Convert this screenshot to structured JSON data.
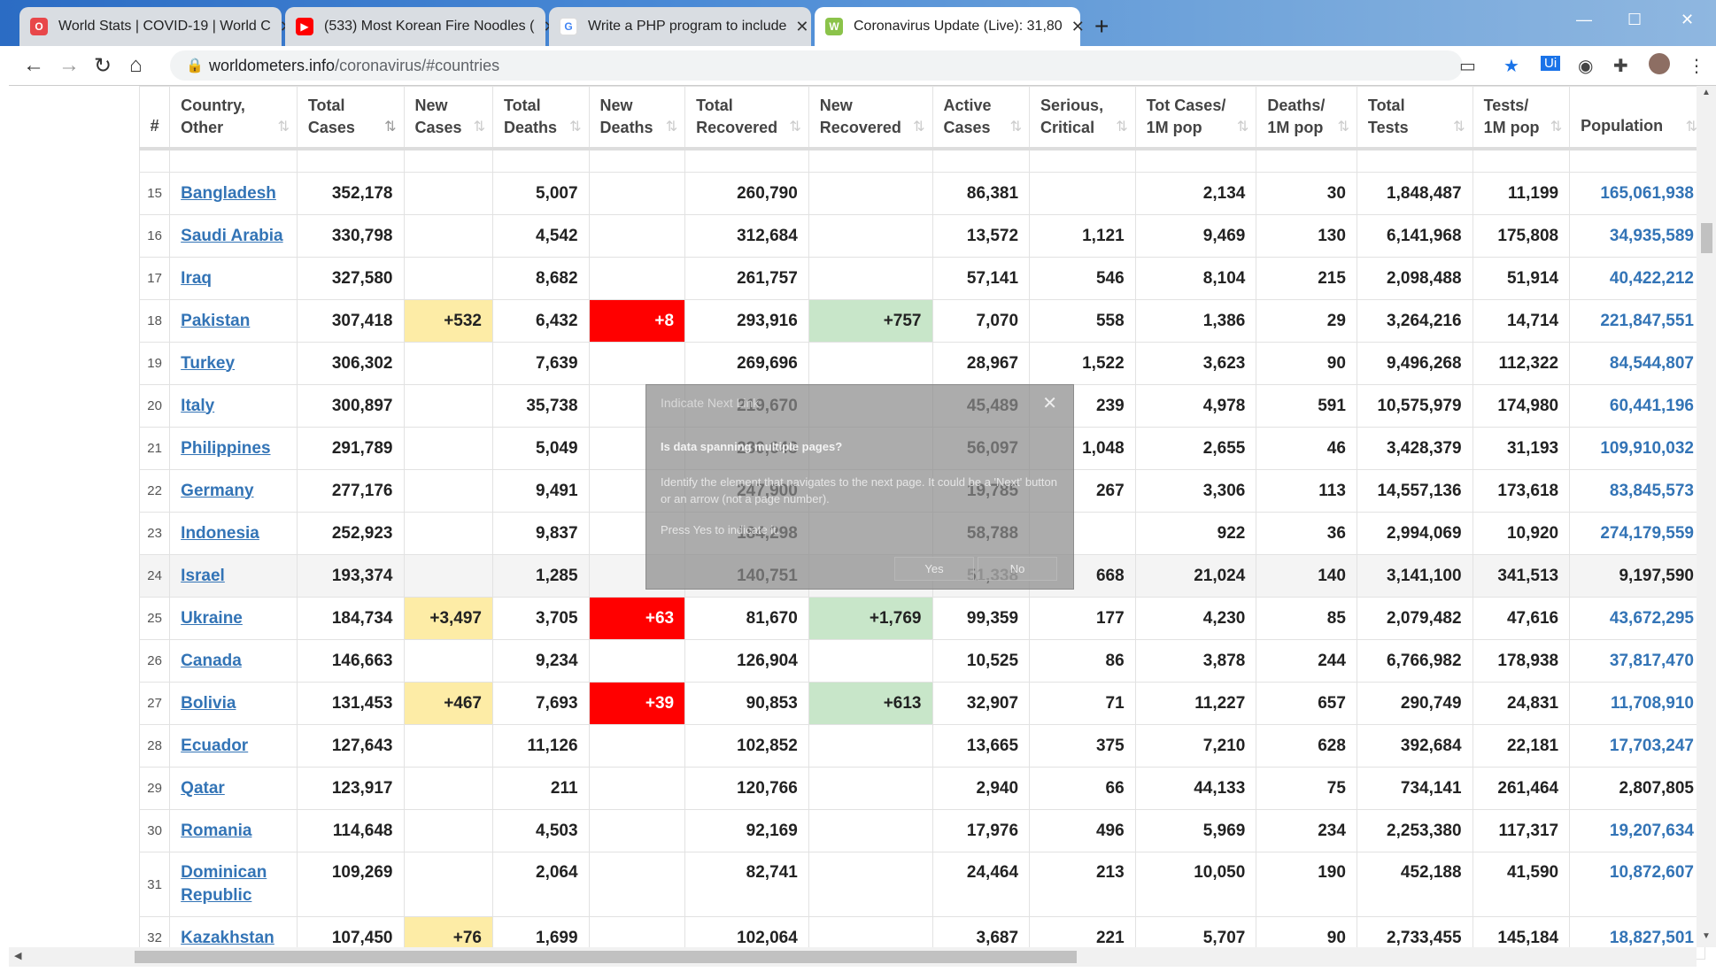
{
  "tabs": [
    {
      "title": "World Stats | COVID-19 | World C",
      "icon": "opera-icon",
      "color": "#e8474a"
    },
    {
      "title": "(533) Most Korean Fire Noodles (",
      "icon": "youtube-icon",
      "color": "#ff0000"
    },
    {
      "title": "Write a PHP program to include",
      "icon": "google-icon",
      "color": "#4285f4"
    },
    {
      "title": "Coronavirus Update (Live): 31,80",
      "icon": "worldometers-icon",
      "color": "#8bc34a"
    }
  ],
  "address": {
    "host": "worldometers.info",
    "path": "/coronavirus/#countries"
  },
  "table": {
    "headers": [
      {
        "line1": "#",
        "line2": ""
      },
      {
        "line1": "Country,",
        "line2": "Other"
      },
      {
        "line1": "Total",
        "line2": "Cases"
      },
      {
        "line1": "New",
        "line2": "Cases"
      },
      {
        "line1": "Total",
        "line2": "Deaths"
      },
      {
        "line1": "New",
        "line2": "Deaths"
      },
      {
        "line1": "Total",
        "line2": "Recovered"
      },
      {
        "line1": "New",
        "line2": "Recovered"
      },
      {
        "line1": "Active",
        "line2": "Cases"
      },
      {
        "line1": "Serious,",
        "line2": "Critical"
      },
      {
        "line1": "Tot Cases/",
        "line2": "1M pop"
      },
      {
        "line1": "Deaths/",
        "line2": "1M pop"
      },
      {
        "line1": "Total",
        "line2": "Tests"
      },
      {
        "line1": "Tests/",
        "line2": "1M pop"
      },
      {
        "line1": "Population",
        "line2": ""
      }
    ],
    "rows": [
      {
        "rank": "15",
        "country": "Bangladesh",
        "total_cases": "352,178",
        "new_cases": "",
        "total_deaths": "5,007",
        "new_deaths": "",
        "total_recovered": "260,790",
        "new_recovered": "",
        "active": "86,381",
        "critical": "",
        "cases_per_m": "2,134",
        "deaths_per_m": "30",
        "tests": "1,848,487",
        "tests_per_m": "11,199",
        "population": "165,061,938"
      },
      {
        "rank": "16",
        "country": "Saudi Arabia",
        "total_cases": "330,798",
        "new_cases": "",
        "total_deaths": "4,542",
        "new_deaths": "",
        "total_recovered": "312,684",
        "new_recovered": "",
        "active": "13,572",
        "critical": "1,121",
        "cases_per_m": "9,469",
        "deaths_per_m": "130",
        "tests": "6,141,968",
        "tests_per_m": "175,808",
        "population": "34,935,589"
      },
      {
        "rank": "17",
        "country": "Iraq",
        "total_cases": "327,580",
        "new_cases": "",
        "total_deaths": "8,682",
        "new_deaths": "",
        "total_recovered": "261,757",
        "new_recovered": "",
        "active": "57,141",
        "critical": "546",
        "cases_per_m": "8,104",
        "deaths_per_m": "215",
        "tests": "2,098,488",
        "tests_per_m": "51,914",
        "population": "40,422,212"
      },
      {
        "rank": "18",
        "country": "Pakistan",
        "total_cases": "307,418",
        "new_cases": "+532",
        "total_deaths": "6,432",
        "new_deaths": "+8",
        "total_recovered": "293,916",
        "new_recovered": "+757",
        "active": "7,070",
        "critical": "558",
        "cases_per_m": "1,386",
        "deaths_per_m": "29",
        "tests": "3,264,216",
        "tests_per_m": "14,714",
        "population": "221,847,551"
      },
      {
        "rank": "19",
        "country": "Turkey",
        "total_cases": "306,302",
        "new_cases": "",
        "total_deaths": "7,639",
        "new_deaths": "",
        "total_recovered": "269,696",
        "new_recovered": "",
        "active": "28,967",
        "critical": "1,522",
        "cases_per_m": "3,623",
        "deaths_per_m": "90",
        "tests": "9,496,268",
        "tests_per_m": "112,322",
        "population": "84,544,807"
      },
      {
        "rank": "20",
        "country": "Italy",
        "total_cases": "300,897",
        "new_cases": "",
        "total_deaths": "35,738",
        "new_deaths": "",
        "total_recovered": "219,670",
        "new_recovered": "",
        "active": "45,489",
        "critical": "239",
        "cases_per_m": "4,978",
        "deaths_per_m": "591",
        "tests": "10,575,979",
        "tests_per_m": "174,980",
        "population": "60,441,196"
      },
      {
        "rank": "21",
        "country": "Philippines",
        "total_cases": "291,789",
        "new_cases": "",
        "total_deaths": "5,049",
        "new_deaths": "",
        "total_recovered": "230,643",
        "new_recovered": "",
        "active": "56,097",
        "critical": "1,048",
        "cases_per_m": "2,655",
        "deaths_per_m": "46",
        "tests": "3,428,379",
        "tests_per_m": "31,193",
        "population": "109,910,032"
      },
      {
        "rank": "22",
        "country": "Germany",
        "total_cases": "277,176",
        "new_cases": "",
        "total_deaths": "9,491",
        "new_deaths": "",
        "total_recovered": "247,900",
        "new_recovered": "",
        "active": "19,785",
        "critical": "267",
        "cases_per_m": "3,306",
        "deaths_per_m": "113",
        "tests": "14,557,136",
        "tests_per_m": "173,618",
        "population": "83,845,573"
      },
      {
        "rank": "23",
        "country": "Indonesia",
        "total_cases": "252,923",
        "new_cases": "",
        "total_deaths": "9,837",
        "new_deaths": "",
        "total_recovered": "184,298",
        "new_recovered": "",
        "active": "58,788",
        "critical": "",
        "cases_per_m": "922",
        "deaths_per_m": "36",
        "tests": "2,994,069",
        "tests_per_m": "10,920",
        "population": "274,179,559"
      },
      {
        "rank": "24",
        "country": "Israel",
        "total_cases": "193,374",
        "new_cases": "",
        "total_deaths": "1,285",
        "new_deaths": "",
        "total_recovered": "140,751",
        "new_recovered": "",
        "active": "51,338",
        "critical": "668",
        "cases_per_m": "21,024",
        "deaths_per_m": "140",
        "tests": "3,141,100",
        "tests_per_m": "341,513",
        "population": "9,197,590"
      },
      {
        "rank": "25",
        "country": "Ukraine",
        "total_cases": "184,734",
        "new_cases": "+3,497",
        "total_deaths": "3,705",
        "new_deaths": "+63",
        "total_recovered": "81,670",
        "new_recovered": "+1,769",
        "active": "99,359",
        "critical": "177",
        "cases_per_m": "4,230",
        "deaths_per_m": "85",
        "tests": "2,079,482",
        "tests_per_m": "47,616",
        "population": "43,672,295"
      },
      {
        "rank": "26",
        "country": "Canada",
        "total_cases": "146,663",
        "new_cases": "",
        "total_deaths": "9,234",
        "new_deaths": "",
        "total_recovered": "126,904",
        "new_recovered": "",
        "active": "10,525",
        "critical": "86",
        "cases_per_m": "3,878",
        "deaths_per_m": "244",
        "tests": "6,766,982",
        "tests_per_m": "178,938",
        "population": "37,817,470"
      },
      {
        "rank": "27",
        "country": "Bolivia",
        "total_cases": "131,453",
        "new_cases": "+467",
        "total_deaths": "7,693",
        "new_deaths": "+39",
        "total_recovered": "90,853",
        "new_recovered": "+613",
        "active": "32,907",
        "critical": "71",
        "cases_per_m": "11,227",
        "deaths_per_m": "657",
        "tests": "290,749",
        "tests_per_m": "24,831",
        "population": "11,708,910"
      },
      {
        "rank": "28",
        "country": "Ecuador",
        "total_cases": "127,643",
        "new_cases": "",
        "total_deaths": "11,126",
        "new_deaths": "",
        "total_recovered": "102,852",
        "new_recovered": "",
        "active": "13,665",
        "critical": "375",
        "cases_per_m": "7,210",
        "deaths_per_m": "628",
        "tests": "392,684",
        "tests_per_m": "22,181",
        "population": "17,703,247"
      },
      {
        "rank": "29",
        "country": "Qatar",
        "total_cases": "123,917",
        "new_cases": "",
        "total_deaths": "211",
        "new_deaths": "",
        "total_recovered": "120,766",
        "new_recovered": "",
        "active": "2,940",
        "critical": "66",
        "cases_per_m": "44,133",
        "deaths_per_m": "75",
        "tests": "734,141",
        "tests_per_m": "261,464",
        "population": "2,807,805"
      },
      {
        "rank": "30",
        "country": "Romania",
        "total_cases": "114,648",
        "new_cases": "",
        "total_deaths": "4,503",
        "new_deaths": "",
        "total_recovered": "92,169",
        "new_recovered": "",
        "active": "17,976",
        "critical": "496",
        "cases_per_m": "5,969",
        "deaths_per_m": "234",
        "tests": "2,253,380",
        "tests_per_m": "117,317",
        "population": "19,207,634"
      },
      {
        "rank": "31",
        "country": "Dominican Republic",
        "total_cases": "109,269",
        "new_cases": "",
        "total_deaths": "2,064",
        "new_deaths": "",
        "total_recovered": "82,741",
        "new_recovered": "",
        "active": "24,464",
        "critical": "213",
        "cases_per_m": "10,050",
        "deaths_per_m": "190",
        "tests": "452,188",
        "tests_per_m": "41,590",
        "population": "10,872,607"
      },
      {
        "rank": "32",
        "country": "Kazakhstan",
        "total_cases": "107,450",
        "new_cases": "+76",
        "total_deaths": "1,699",
        "new_deaths": "",
        "total_recovered": "102,064",
        "new_recovered": "",
        "active": "3,687",
        "critical": "221",
        "cases_per_m": "5,707",
        "deaths_per_m": "90",
        "tests": "2,733,455",
        "tests_per_m": "145,184",
        "population": "18,827,501"
      }
    ]
  },
  "dialog": {
    "title": "Indicate Next Link",
    "question": "Is data spanning multiple pages?",
    "body": "Identify the element that navigates to the next page. It could be a 'Next' button or an arrow (not a page number).",
    "press": "Press Yes to indicate it.",
    "yes": "Yes",
    "no": "No"
  },
  "colors": {
    "new_cases_highlight": "#fdeca6",
    "new_deaths_highlight": "#ff0000",
    "new_recovered_highlight": "#c8e6c9",
    "link": "#3374b6"
  }
}
